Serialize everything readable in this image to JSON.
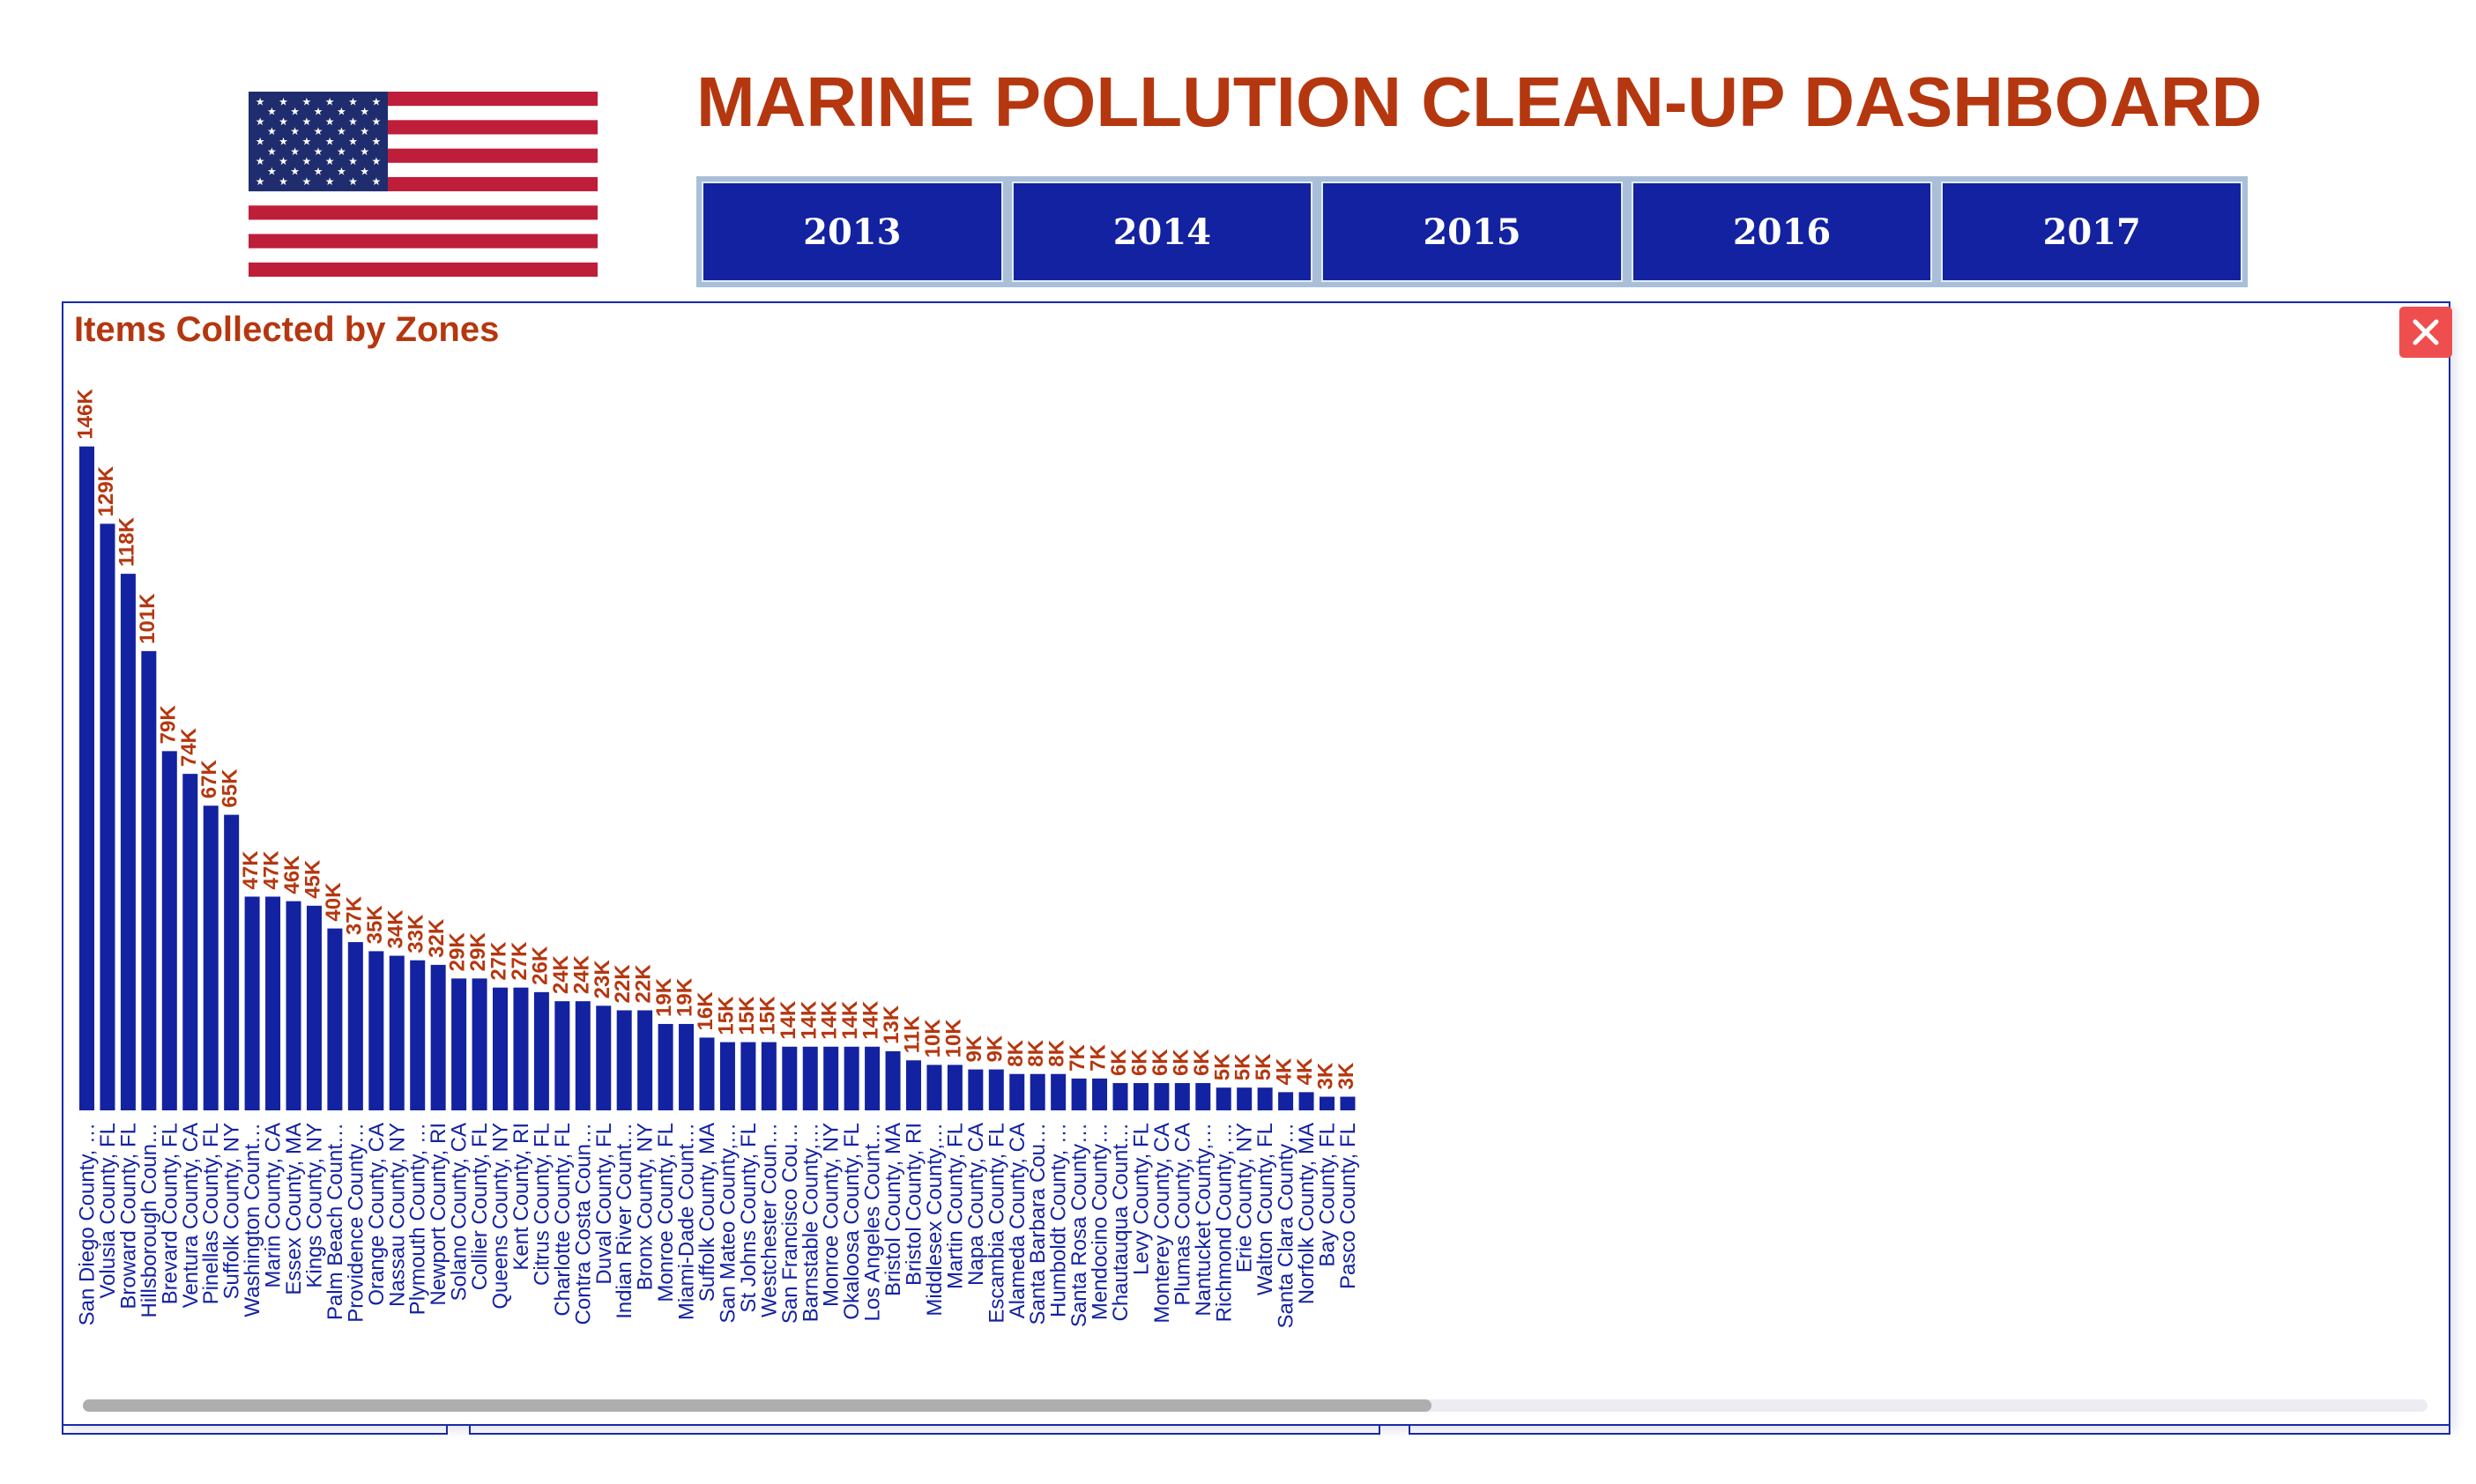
{
  "header": {
    "title": "MARINE POLLUTION CLEAN-UP DASHBOARD",
    "flag_icon": "us-flag-icon"
  },
  "years": [
    "2013",
    "2014",
    "2015",
    "2016",
    "2017"
  ],
  "visual": {
    "title": "Items Collected by Zones",
    "close_icon": "close-icon"
  },
  "colors": {
    "bar": "#1322a0",
    "label": "#b5370f",
    "title": "#b5370f",
    "button": "#1322a0",
    "close": "#ef4e4e"
  },
  "chart_data": {
    "type": "bar",
    "title": "Items Collected by Zones",
    "xlabel": "",
    "ylabel": "",
    "ylim": [
      0,
      150000
    ],
    "grid": false,
    "legend": "none",
    "categories": [
      "San Diego County, …",
      "Volusia County, FL",
      "Broward County, FL",
      "Hillsborough Coun…",
      "Brevard County, FL",
      "Ventura County, CA",
      "Pinellas County, FL",
      "Suffolk County, NY",
      "Washington Count…",
      "Marin County, CA",
      "Essex County, MA",
      "Kings County, NY",
      "Palm Beach Count…",
      "Providence County…",
      "Orange County, CA",
      "Nassau County, NY",
      "Plymouth County, …",
      "Newport County, RI",
      "Solano County, CA",
      "Collier County, FL",
      "Queens County, NY",
      "Kent County, RI",
      "Citrus County, FL",
      "Charlotte County, FL",
      "Contra Costa Coun…",
      "Duval County, FL",
      "Indian River Count…",
      "Bronx County, NY",
      "Monroe County, FL",
      "Miami-Dade Count…",
      "Suffolk County, MA",
      "San Mateo County,…",
      "St Johns County, FL",
      "Westchester Coun…",
      "San Francisco Cou…",
      "Barnstable County,…",
      "Monroe County, NY",
      "Okaloosa County, FL",
      "Los Angeles Count…",
      "Bristol County, MA",
      "Bristol County, RI",
      "Middlesex County,…",
      "Martin County, FL",
      "Napa County, CA",
      "Escambia County, FL",
      "Alameda County, CA",
      "Santa Barbara Cou…",
      "Humboldt County, …",
      "Santa Rosa County…",
      "Mendocino County…",
      "Chautauqua Count…",
      "Levy County, FL",
      "Monterey County, CA",
      "Plumas County, CA",
      "Nantucket County,…",
      "Richmond County, …",
      "Erie County, NY",
      "Walton County, FL",
      "Santa Clara County…",
      "Norfolk County, MA",
      "Bay County, FL",
      "Pasco County, FL"
    ],
    "values": [
      146000,
      129000,
      118000,
      101000,
      79000,
      74000,
      67000,
      65000,
      47000,
      47000,
      46000,
      45000,
      40000,
      37000,
      35000,
      34000,
      33000,
      32000,
      29000,
      29000,
      27000,
      27000,
      26000,
      24000,
      24000,
      23000,
      22000,
      22000,
      19000,
      19000,
      16000,
      15000,
      15000,
      15000,
      14000,
      14000,
      14000,
      14000,
      14000,
      13000,
      11000,
      10000,
      10000,
      9000,
      9000,
      8000,
      8000,
      8000,
      7000,
      7000,
      6000,
      6000,
      6000,
      6000,
      6000,
      5000,
      5000,
      5000,
      4000,
      4000,
      3000,
      3000
    ],
    "data_labels": [
      "146K",
      "129K",
      "118K",
      "101K",
      "79K",
      "74K",
      "67K",
      "65K",
      "47K",
      "47K",
      "46K",
      "45K",
      "40K",
      "37K",
      "35K",
      "34K",
      "33K",
      "32K",
      "29K",
      "29K",
      "27K",
      "27K",
      "26K",
      "24K",
      "24K",
      "23K",
      "22K",
      "22K",
      "19K",
      "19K",
      "16K",
      "15K",
      "15K",
      "15K",
      "14K",
      "14K",
      "14K",
      "14K",
      "14K",
      "13K",
      "11K",
      "10K",
      "10K",
      "9K",
      "9K",
      "8K",
      "8K",
      "8K",
      "7K",
      "7K",
      "6K",
      "6K",
      "6K",
      "6K",
      "6K",
      "5K",
      "5K",
      "5K",
      "4K",
      "4K",
      "3K",
      "3K"
    ]
  }
}
